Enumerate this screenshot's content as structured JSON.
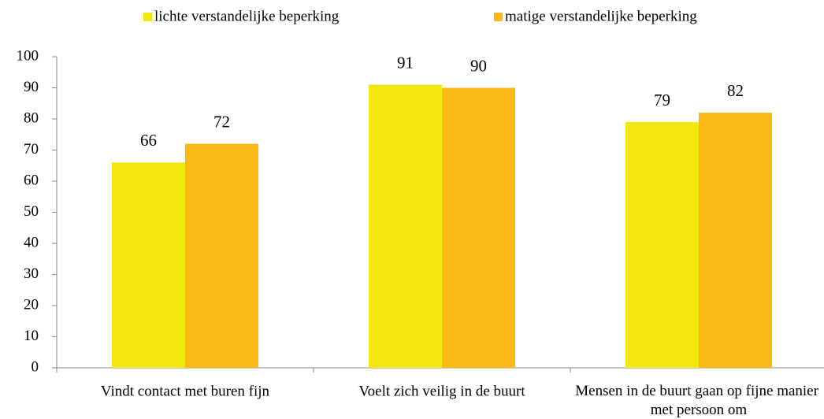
{
  "chart_data": {
    "type": "bar",
    "categories": [
      "Vindt contact met buren fijn",
      "Voelt zich veilig in de buurt",
      "Mensen in de buurt gaan op fijne manier met persoon om"
    ],
    "series": [
      {
        "name": "lichte verstandelijke beperking",
        "color": "#f2e80f",
        "values": [
          66,
          91,
          79
        ]
      },
      {
        "name": "matige verstandelijke beperking",
        "color": "#fbb917",
        "values": [
          72,
          90,
          82
        ]
      }
    ],
    "ylim": [
      0,
      100
    ],
    "yticks": [
      0,
      10,
      20,
      30,
      40,
      50,
      60,
      70,
      80,
      90,
      100
    ],
    "grid": false,
    "legend": "top"
  }
}
